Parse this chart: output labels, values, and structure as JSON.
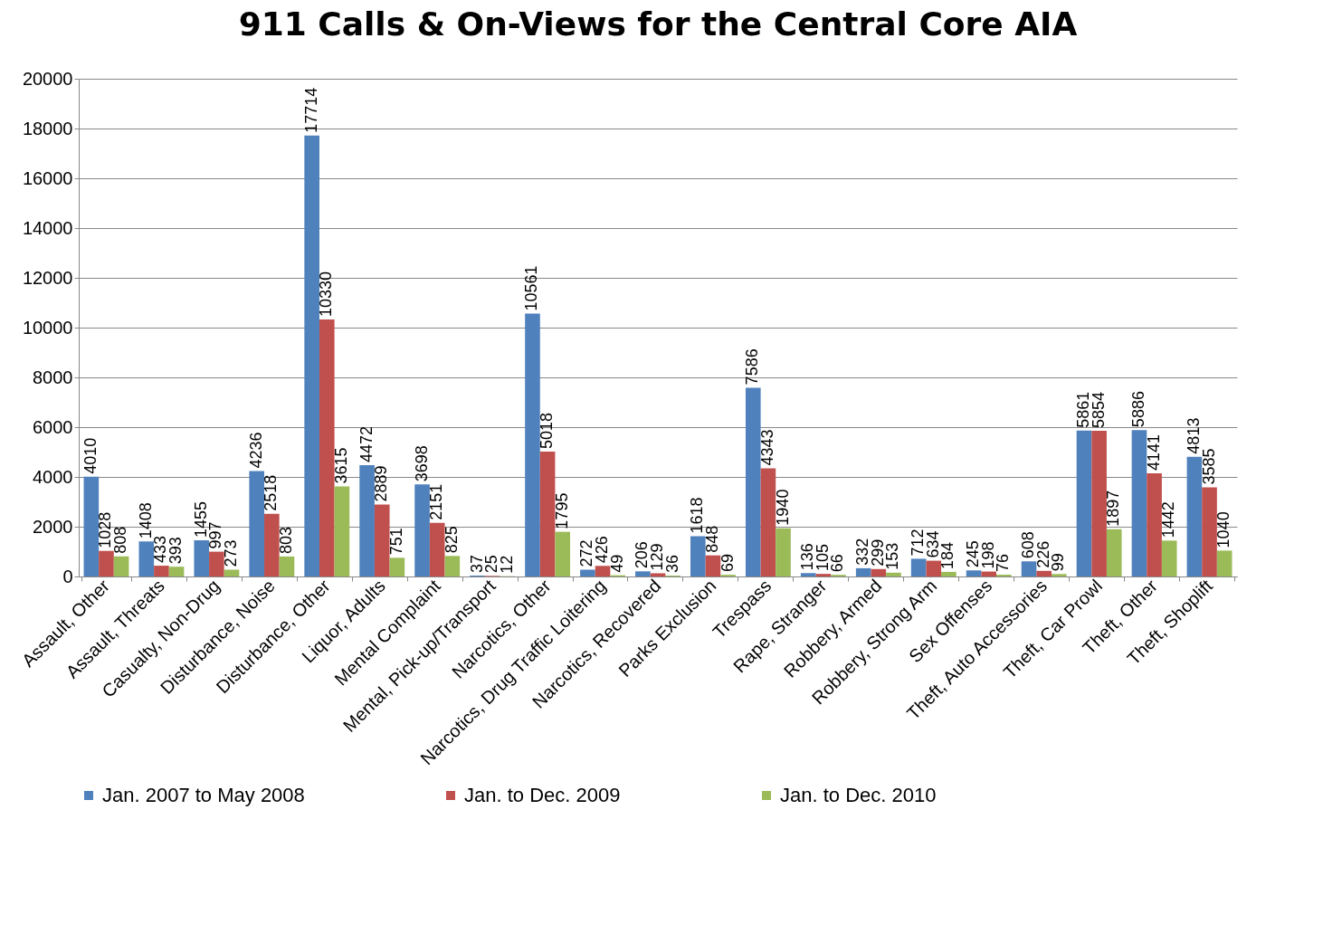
{
  "chart_data": {
    "type": "bar",
    "title": "911 Calls & On-Views for the Central Core AIA",
    "categories": [
      "Assault, Other",
      "Assault, Threats",
      "Casualty, Non-Drug",
      "Disturbance, Noise",
      "Disturbance, Other",
      "Liquor, Adults",
      "Mental Complaint",
      "Mental, Pick-up/Transport",
      "Narcotics, Other",
      "Narcotics, Drug Traffic Loitering",
      "Narcotics, Recovered",
      "Parks Exclusion",
      "Trespass",
      "Rape, Stranger",
      "Robbery, Armed",
      "Robbery, Strong Arm",
      "Sex Offenses",
      "Theft, Auto Accessories",
      "Theft, Car Prowl",
      "Theft, Other",
      "Theft, Shoplift"
    ],
    "series": [
      {
        "name": "Jan. 2007 to May 2008",
        "color": "#4f81bd",
        "values": [
          4010,
          1408,
          1455,
          4236,
          17714,
          4472,
          3698,
          37,
          10561,
          272,
          206,
          1618,
          7586,
          136,
          332,
          712,
          245,
          608,
          5861,
          5886,
          4813
        ]
      },
      {
        "name": "Jan. to Dec. 2009",
        "color": "#c0504d",
        "values": [
          1028,
          433,
          997,
          2518,
          10330,
          2889,
          2151,
          25,
          5018,
          426,
          129,
          848,
          4343,
          105,
          299,
          634,
          198,
          226,
          5854,
          4141,
          3585
        ]
      },
      {
        "name": "Jan. to Dec. 2010",
        "color": "#9bbb59",
        "values": [
          808,
          393,
          273,
          803,
          3615,
          751,
          825,
          12,
          1795,
          49,
          36,
          69,
          1940,
          66,
          153,
          184,
          76,
          99,
          1897,
          1442,
          1040
        ]
      }
    ],
    "ylim": [
      0,
      20000
    ],
    "yticks": [
      0,
      2000,
      4000,
      6000,
      8000,
      10000,
      12000,
      14000,
      16000,
      18000,
      20000
    ],
    "grid": "y",
    "legend": "bottom",
    "data_labels": true
  }
}
